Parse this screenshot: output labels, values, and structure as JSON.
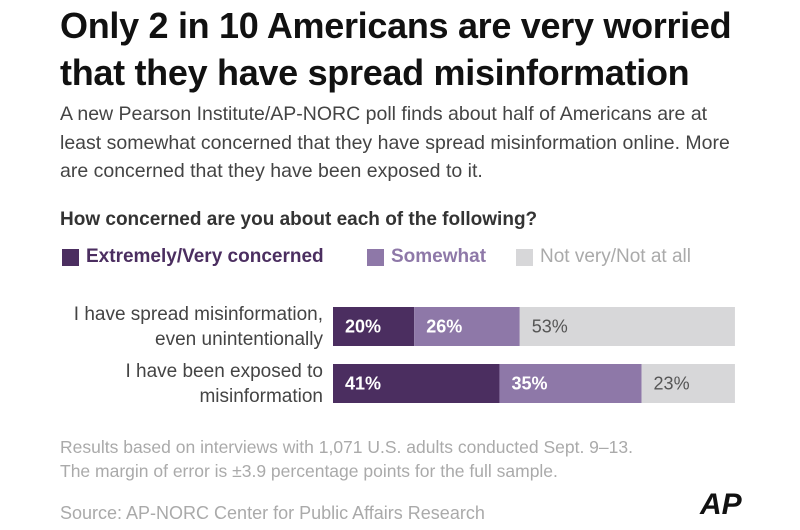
{
  "chart_data": {
    "type": "bar",
    "orientation": "horizontal",
    "stacked": true,
    "title": "Only 2 in 10 Americans are very worried that they have spread misinformation",
    "subtitle": "A new Pearson Institute/AP-NORC poll finds about half of Americans are at least somewhat concerned that they have spread misinformation online. More are concerned that they have been exposed to it.",
    "question": "How concerned are you about each of the following?",
    "categories": [
      "I have spread misinformation, even unintentionally",
      "I have been exposed to misinformation"
    ],
    "series": [
      {
        "name": "Extremely/Very concerned",
        "color": "#4b2e60",
        "label_color": "#ffffff",
        "values": [
          20,
          41
        ],
        "value_labels": [
          "20%",
          "41%"
        ]
      },
      {
        "name": "Somewhat",
        "color": "#8e78a8",
        "label_color": "#ffffff",
        "values": [
          26,
          35
        ],
        "value_labels": [
          "26%",
          "35%"
        ]
      },
      {
        "name": "Not very/Not at all",
        "color": "#d7d7d9",
        "label_color": "#555555",
        "values": [
          53,
          23
        ],
        "value_labels": [
          "53%",
          "23%"
        ]
      }
    ],
    "notes": [
      "Results based on interviews with 1,071 U.S. adults conducted Sept. 9–13.",
      "The margin of error is ±3.9 percentage points for the full sample."
    ],
    "source": "Source: AP-NORC Center for Public Affairs Research",
    "logo": "AP"
  }
}
